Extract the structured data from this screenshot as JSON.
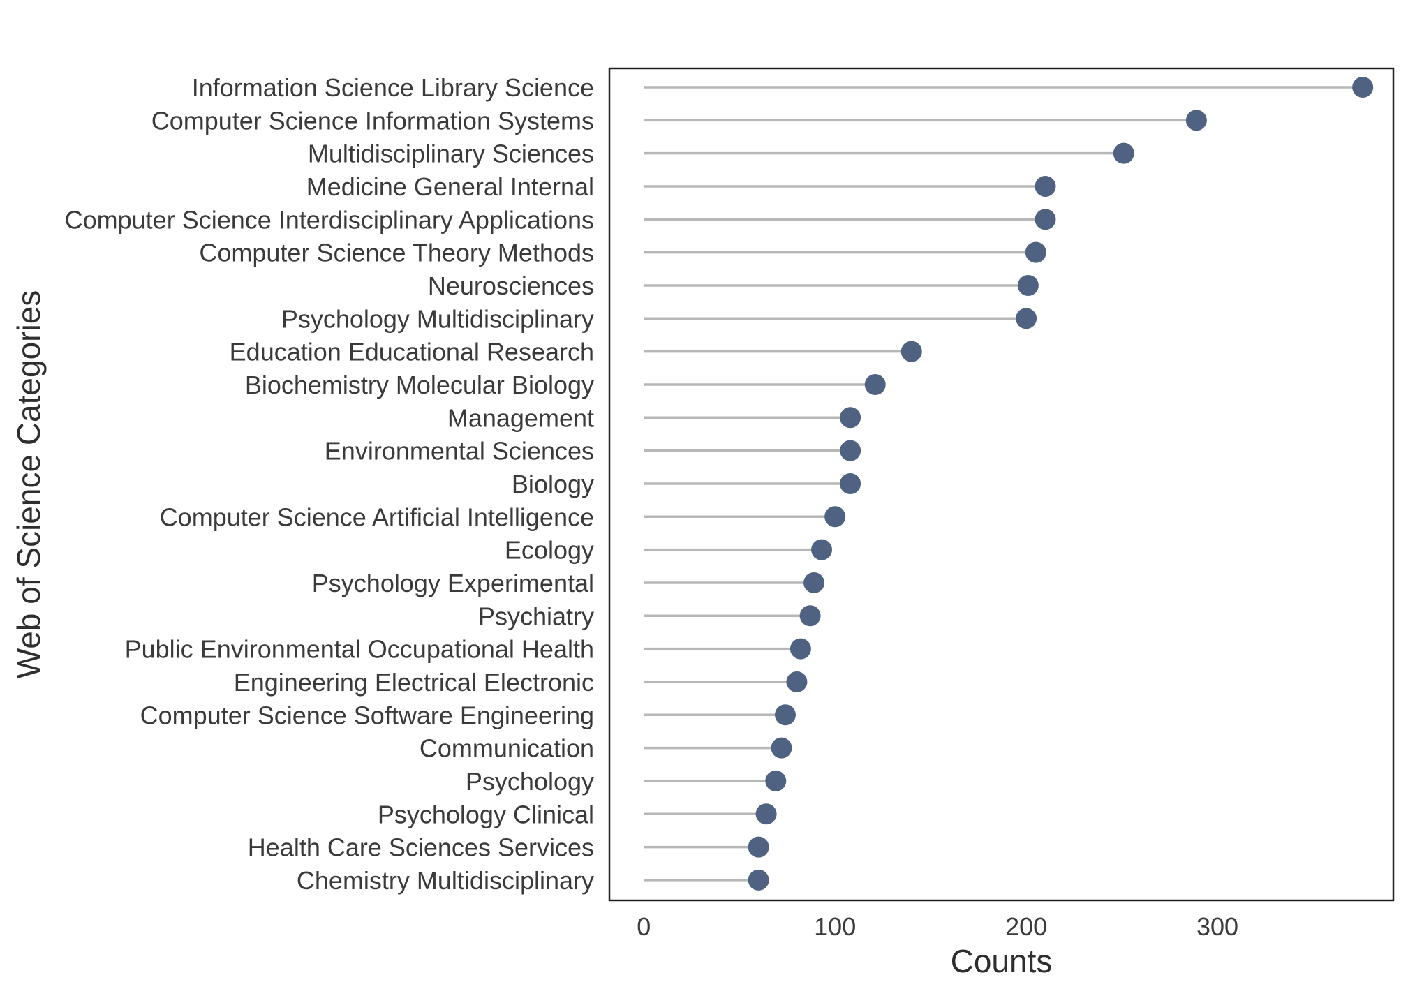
{
  "chart_data": {
    "type": "lollipop",
    "xlabel": "Counts",
    "ylabel": "Web of Science Categories",
    "xlim": [
      -18,
      392
    ],
    "xticks": [
      0,
      100,
      200,
      300
    ],
    "grid": false,
    "colors": {
      "point": "#4f6282",
      "stem": "#b7b7b7",
      "panel_border": "#222222"
    },
    "categories": [
      "Information Science Library Science",
      "Computer Science Information Systems",
      "Multidisciplinary Sciences",
      "Medicine General Internal",
      "Computer Science Interdisciplinary Applications",
      "Computer Science Theory Methods",
      "Neurosciences",
      "Psychology Multidisciplinary",
      "Education Educational Research",
      "Biochemistry Molecular Biology",
      "Management",
      "Environmental Sciences",
      "Biology",
      "Computer Science Artificial Intelligence",
      "Ecology",
      "Psychology Experimental",
      "Psychiatry",
      "Public Environmental Occupational Health",
      "Engineering Electrical Electronic",
      "Computer Science Software Engineering",
      "Communication",
      "Psychology",
      "Psychology Clinical",
      "Health Care Sciences Services",
      "Chemistry Multidisciplinary"
    ],
    "values": [
      376,
      289,
      251,
      210,
      210,
      205,
      201,
      200,
      140,
      121,
      108,
      108,
      108,
      100,
      93,
      89,
      87,
      82,
      80,
      74,
      72,
      69,
      64,
      60,
      60
    ]
  }
}
